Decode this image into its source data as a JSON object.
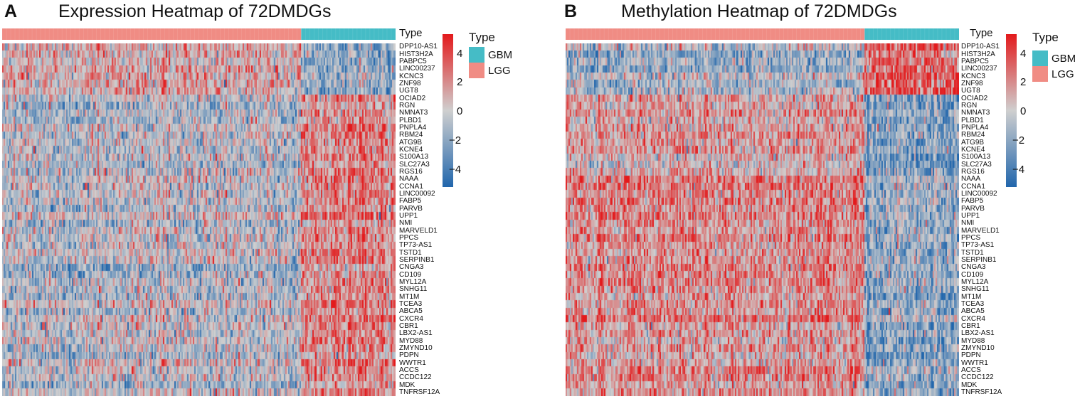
{
  "panels": [
    {
      "letter": "A",
      "title": "Expression Heatmap of 72DMDGs",
      "annotation_label": "Type",
      "colorbar_ticks": [
        "4",
        "2",
        "0",
        "−2",
        "−4"
      ],
      "legend": {
        "title": "Type",
        "items": [
          {
            "label": "GBM"
          },
          {
            "label": "LGG"
          }
        ]
      }
    },
    {
      "letter": "B",
      "title": "Methylation Heatmap of 72DMDGs",
      "annotation_label": "Type",
      "colorbar_ticks": [
        "4",
        "2",
        "0",
        "−2",
        "−4"
      ],
      "legend": {
        "title": "Type",
        "items": [
          {
            "label": "GBM"
          },
          {
            "label": "LGG"
          }
        ]
      }
    }
  ],
  "colors": {
    "low": "#2166ac",
    "mid": "#cfcfcf",
    "high": "#e31a1c",
    "lgg": "#f08c84",
    "gbm": "#45bcc6"
  },
  "chart_data": [
    {
      "type": "heatmap",
      "title": "Expression Heatmap of 72DMDGs",
      "annotation": {
        "name": "Type",
        "groups": [
          {
            "label": "LGG",
            "fraction": 0.76
          },
          {
            "label": "GBM",
            "fraction": 0.24
          }
        ]
      },
      "rows": [
        "DPP10-AS1",
        "HIST3H2A",
        "PABPC5",
        "LINC00237",
        "KCNC3",
        "ZNF98",
        "UGT8",
        "OCIAD2",
        "RGN",
        "NMNAT3",
        "PLBD1",
        "PNPLA4",
        "RBM24",
        "ATG9B",
        "KCNE4",
        "S100A13",
        "SLC27A3",
        "RGS16",
        "NAAA",
        "CCNA1",
        "LINC00092",
        "FABP5",
        "PARVB",
        "UPP1",
        "NMI",
        "MARVELD1",
        "PPCS",
        "TP73-AS1",
        "TSTD1",
        "SERPINB1",
        "CNGA3",
        "CD109",
        "MYL12A",
        "SNHG11",
        "MT1M",
        "TCEA3",
        "ABCA5",
        "CXCR4",
        "CBR1",
        "LBX2-AS1",
        "MYD88",
        "ZMYND10",
        "PDPN",
        "WWTR1",
        "ACCS",
        "CCDC122",
        "MDK",
        "TNFRSF12A"
      ],
      "row_trend": "first 7 rows higher in LGG, remaining rows higher in GBM",
      "value_range": [
        -5,
        5
      ],
      "colorbar_ticks": [
        4,
        2,
        0,
        -2,
        -4
      ]
    },
    {
      "type": "heatmap",
      "title": "Methylation Heatmap of 72DMDGs",
      "annotation": {
        "name": "Type",
        "groups": [
          {
            "label": "LGG",
            "fraction": 0.76
          },
          {
            "label": "GBM",
            "fraction": 0.24
          }
        ]
      },
      "rows": [
        "DPP10-AS1",
        "HIST3H2A",
        "PABPC5",
        "LINC00237",
        "KCNC3",
        "ZNF98",
        "UGT8",
        "OCIAD2",
        "RGN",
        "NMNAT3",
        "PLBD1",
        "PNPLA4",
        "RBM24",
        "ATG9B",
        "KCNE4",
        "S100A13",
        "SLC27A3",
        "RGS16",
        "NAAA",
        "CCNA1",
        "LINC00092",
        "FABP5",
        "PARVB",
        "UPP1",
        "NMI",
        "MARVELD1",
        "PPCS",
        "TP73-AS1",
        "TSTD1",
        "SERPINB1",
        "CNGA3",
        "CD109",
        "MYL12A",
        "SNHG11",
        "MT1M",
        "TCEA3",
        "ABCA5",
        "CXCR4",
        "CBR1",
        "LBX2-AS1",
        "MYD88",
        "ZMYND10",
        "PDPN",
        "WWTR1",
        "ACCS",
        "CCDC122",
        "MDK",
        "TNFRSF12A"
      ],
      "row_trend": "first 7 rows higher in GBM, remaining rows higher in LGG",
      "value_range": [
        -5,
        5
      ],
      "colorbar_ticks": [
        4,
        2,
        0,
        -2,
        -4
      ]
    }
  ]
}
